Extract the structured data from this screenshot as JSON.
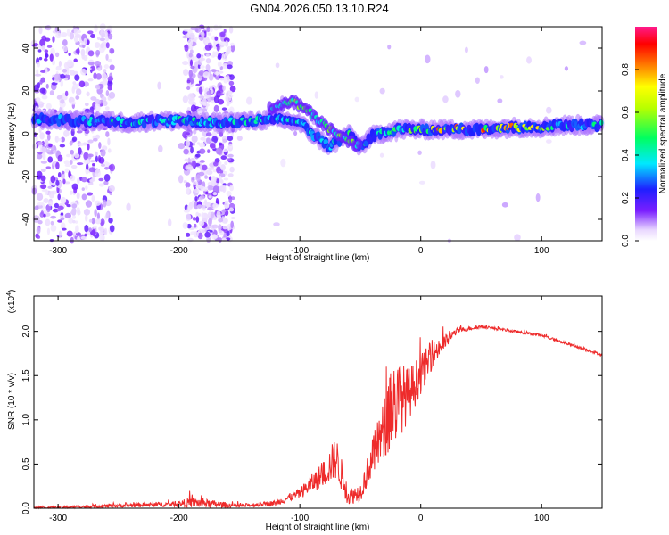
{
  "title": "GN04.2026.050.13.10.R24",
  "chart_data": [
    {
      "type": "heatmap",
      "name": "spectrogram",
      "xlabel": "Height of straight line (km)",
      "ylabel": "Frequency (Hz)",
      "xlim": [
        -320,
        150
      ],
      "ylim": [
        -50,
        50
      ],
      "xticks": [
        -300,
        -200,
        -100,
        0,
        100
      ],
      "yticks": [
        -40,
        -20,
        0,
        20,
        40
      ],
      "colorbar": {
        "label": "Normalized spectral amplitude",
        "range": [
          0,
          1
        ],
        "ticks": [
          "0.0",
          "0.2",
          "0.4",
          "0.6",
          "0.8"
        ],
        "tick_values": [
          0.0,
          0.2,
          0.4,
          0.6,
          0.8
        ]
      },
      "ridge": [
        {
          "x": -320,
          "f": 7,
          "amp": 0.35
        },
        {
          "x": -280,
          "f": 6,
          "amp": 0.35
        },
        {
          "x": -260,
          "f": 6,
          "amp": 0.45
        },
        {
          "x": -240,
          "f": 5,
          "amp": 0.45
        },
        {
          "x": -220,
          "f": 6,
          "amp": 0.5
        },
        {
          "x": -200,
          "f": 6,
          "amp": 0.45
        },
        {
          "x": -170,
          "f": 5,
          "amp": 0.45
        },
        {
          "x": -140,
          "f": 6,
          "amp": 0.45
        },
        {
          "x": -120,
          "f": 7,
          "amp": 0.45
        },
        {
          "x": -100,
          "f": 5,
          "amp": 0.45
        },
        {
          "x": -90,
          "f": 0,
          "amp": 0.5
        },
        {
          "x": -75,
          "f": -6,
          "amp": 0.45
        },
        {
          "x": -60,
          "f": 0,
          "amp": 0.5
        },
        {
          "x": -50,
          "f": -6,
          "amp": 0.45
        },
        {
          "x": -40,
          "f": -1,
          "amp": 0.5
        },
        {
          "x": -20,
          "f": 2,
          "amp": 0.55
        },
        {
          "x": 0,
          "f": 2,
          "amp": 0.7
        },
        {
          "x": 20,
          "f": 2,
          "amp": 0.85
        },
        {
          "x": 50,
          "f": 2,
          "amp": 0.85
        },
        {
          "x": 80,
          "f": 3,
          "amp": 0.8
        },
        {
          "x": 100,
          "f": 3,
          "amp": 0.7
        },
        {
          "x": 120,
          "f": 4,
          "amp": 0.45
        },
        {
          "x": 150,
          "f": 4,
          "amp": 0.45
        }
      ],
      "upper_branch": [
        {
          "x": -125,
          "f": 12
        },
        {
          "x": -105,
          "f": 15
        },
        {
          "x": -92,
          "f": 10
        },
        {
          "x": -80,
          "f": 4
        },
        {
          "x": -60,
          "f": -3
        },
        {
          "x": -50,
          "f": -6
        }
      ],
      "noise_bands": [
        [
          -320,
          -255
        ],
        [
          -195,
          -155
        ]
      ]
    },
    {
      "type": "line",
      "name": "snr",
      "xlabel": "Height of straight line (km)",
      "ylabel": "SNR (10 * v/v)",
      "exponent_label": "(x10",
      "exponent": "4",
      "exponent_close": ")",
      "xlim": [
        -320,
        150
      ],
      "ylim": [
        0,
        2.4
      ],
      "xticks": [
        -300,
        -200,
        -100,
        0,
        100
      ],
      "yticks": [
        "0.0",
        "0.5",
        "1.0",
        "1.5",
        "2.0"
      ],
      "ytick_values": [
        0.0,
        0.5,
        1.0,
        1.5,
        2.0
      ],
      "color": "#ee2b2b",
      "envelope": [
        {
          "x": -320,
          "base": 0.0,
          "amp": 0.02
        },
        {
          "x": -260,
          "base": 0.02,
          "amp": 0.04
        },
        {
          "x": -200,
          "base": 0.04,
          "amp": 0.06
        },
        {
          "x": -190,
          "base": 0.05,
          "amp": 0.12
        },
        {
          "x": -150,
          "base": 0.02,
          "amp": 0.04
        },
        {
          "x": -120,
          "base": 0.05,
          "amp": 0.06
        },
        {
          "x": -100,
          "base": 0.15,
          "amp": 0.12
        },
        {
          "x": -80,
          "base": 0.35,
          "amp": 0.3
        },
        {
          "x": -70,
          "base": 0.5,
          "amp": 0.5
        },
        {
          "x": -60,
          "base": 0.1,
          "amp": 0.2
        },
        {
          "x": -50,
          "base": 0.15,
          "amp": 0.2
        },
        {
          "x": -40,
          "base": 0.5,
          "amp": 0.45
        },
        {
          "x": -30,
          "base": 0.8,
          "amp": 0.7
        },
        {
          "x": -25,
          "base": 1.0,
          "amp": 1.1
        },
        {
          "x": -10,
          "base": 1.2,
          "amp": 0.6
        },
        {
          "x": 10,
          "base": 1.7,
          "amp": 0.3
        },
        {
          "x": 30,
          "base": 2.0,
          "amp": 0.06
        },
        {
          "x": 50,
          "base": 2.05,
          "amp": 0.03
        },
        {
          "x": 100,
          "base": 1.95,
          "amp": 0.03
        },
        {
          "x": 150,
          "base": 1.73,
          "amp": 0.03
        }
      ]
    }
  ]
}
